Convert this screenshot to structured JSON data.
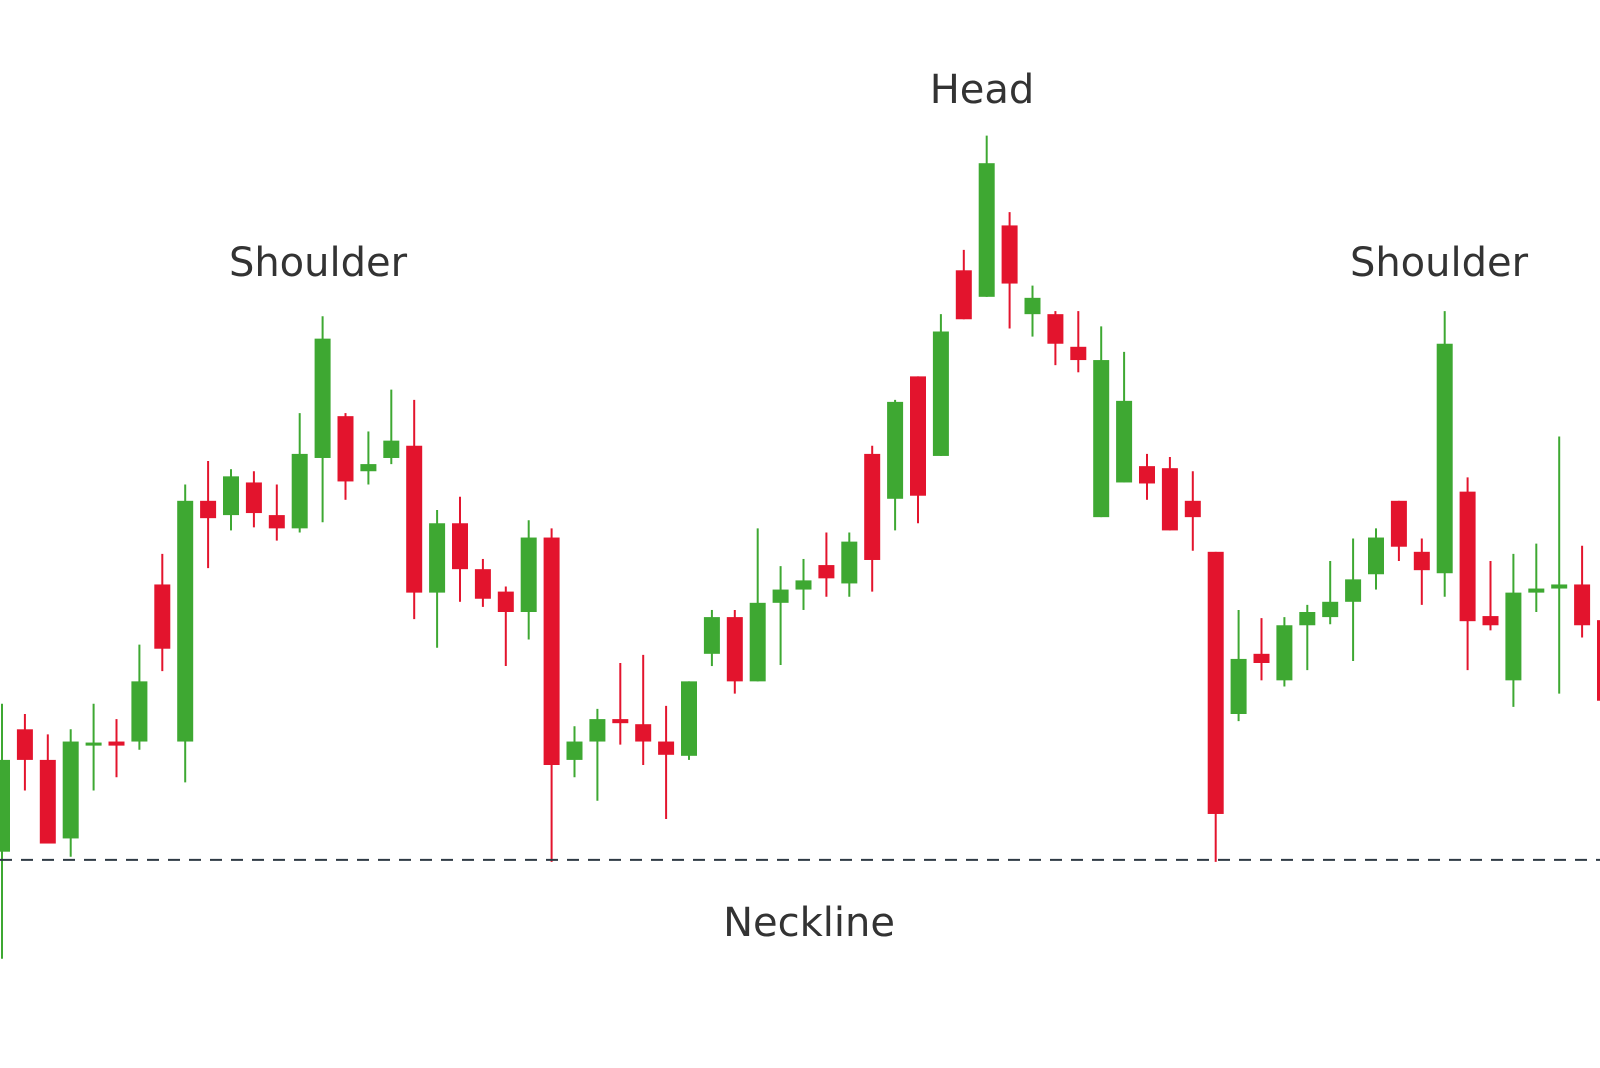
{
  "chart_data": {
    "type": "candlestick",
    "up_color": "#3ea832",
    "down_color": "#e3142d",
    "ylim": [
      0,
      1000
    ],
    "open": [
      165,
      285,
      255,
      178,
      269,
      273,
      273,
      427,
      273,
      509,
      495,
      527,
      495,
      482,
      551,
      592,
      538,
      551,
      563,
      419,
      487,
      442,
      420,
      400,
      473,
      255,
      273,
      295,
      290,
      273,
      259,
      359,
      395,
      332,
      409,
      422,
      446,
      428,
      555,
      511,
      631,
      553,
      735,
      709,
      779,
      692,
      692,
      660,
      493,
      527,
      543,
      541,
      509,
      459,
      300,
      359,
      333,
      387,
      395,
      410,
      437,
      509,
      459,
      438,
      518,
      396,
      333,
      419,
      423,
      427,
      392
    ],
    "high": [
      310,
      300,
      280,
      285,
      310,
      295,
      368,
      457,
      525,
      548,
      540,
      538,
      525,
      595,
      690,
      595,
      577,
      618,
      608,
      500,
      513,
      452,
      425,
      490,
      482,
      288,
      305,
      350,
      358,
      308,
      332,
      402,
      402,
      482,
      445,
      452,
      478,
      478,
      563,
      608,
      631,
      692,
      755,
      867,
      792,
      720,
      695,
      695,
      680,
      655,
      555,
      552,
      538,
      459,
      402,
      394,
      395,
      407,
      450,
      472,
      482,
      509,
      472,
      695,
      532,
      450,
      457,
      467,
      572,
      465,
      435
    ],
    "low": [
      60,
      225,
      173,
      160,
      225,
      238,
      265,
      342,
      233,
      443,
      480,
      483,
      470,
      478,
      488,
      510,
      525,
      545,
      393,
      365,
      410,
      405,
      347,
      373,
      155,
      238,
      215,
      270,
      250,
      197,
      255,
      347,
      320,
      332,
      348,
      402,
      415,
      415,
      420,
      480,
      487,
      553,
      687,
      709,
      678,
      670,
      642,
      635,
      493,
      527,
      510,
      480,
      460,
      155,
      293,
      333,
      327,
      343,
      388,
      352,
      422,
      450,
      407,
      415,
      343,
      382,
      307,
      400,
      320,
      375,
      307
    ],
    "close": [
      255,
      255,
      173,
      273,
      272,
      269,
      332,
      364,
      509,
      492,
      533,
      497,
      482,
      555,
      668,
      528,
      545,
      568,
      419,
      487,
      442,
      413,
      400,
      473,
      250,
      273,
      295,
      291,
      273,
      260,
      332,
      395,
      332,
      409,
      422,
      431,
      433,
      469,
      451,
      606,
      514,
      675,
      687,
      840,
      722,
      708,
      663,
      647,
      647,
      607,
      526,
      480,
      493,
      202,
      354,
      350,
      387,
      400,
      410,
      432,
      473,
      464,
      441,
      663,
      391,
      387,
      419,
      423,
      427,
      387,
      313
    ],
    "neckline": {
      "label": "Neckline",
      "value": 157
    },
    "annotations": [
      "Shoulder",
      "Head",
      "Shoulder"
    ]
  }
}
